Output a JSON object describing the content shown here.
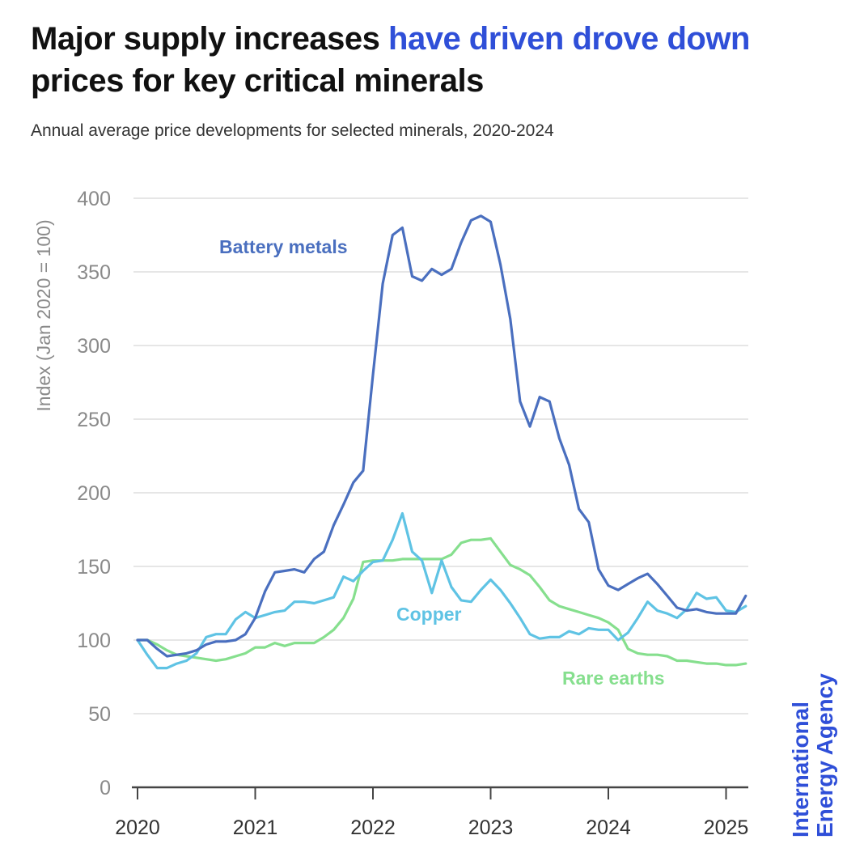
{
  "header": {
    "title_part1": "Major supply increases ",
    "title_highlight": "have driven drove down",
    "title_part2": " prices for key critical minerals",
    "subtitle": "Annual average price developments for selected minerals, 2020-2024"
  },
  "source": {
    "line1": "International",
    "line2": "Energy Agency"
  },
  "colors": {
    "highlight": "#2f4fd8",
    "battery_metals": "#4a6fbf",
    "copper": "#5fc3e4",
    "rare_earths": "#86df8e",
    "grid": "#e6e6e6",
    "axis": "#444444"
  },
  "chart_data": {
    "type": "line",
    "title": "Major supply increases have driven drove down prices for key critical minerals",
    "subtitle": "Annual average price developments for selected minerals, 2020-2024",
    "xlabel": "",
    "ylabel": "Index (Jan 2020 = 100)",
    "x_start": "2020-01",
    "x_frequency": "monthly",
    "x_ticks": [
      "2020",
      "2021",
      "2022",
      "2023",
      "2024",
      "2025"
    ],
    "xlim": [
      2020.0,
      2025.2
    ],
    "ylim": [
      0,
      400
    ],
    "y_ticks": [
      0,
      50,
      100,
      150,
      200,
      250,
      300,
      350,
      400
    ],
    "grid": true,
    "legend": "inline labels",
    "series": [
      {
        "name": "Battery metals",
        "color": "#4a6fbf",
        "values": [
          100,
          100,
          94,
          89,
          90,
          91,
          93,
          97,
          99,
          99,
          100,
          104,
          115,
          133,
          146,
          147,
          148,
          146,
          155,
          160,
          178,
          192,
          207,
          215,
          280,
          342,
          375,
          380,
          347,
          344,
          352,
          348,
          352,
          370,
          385,
          388,
          384,
          355,
          318,
          262,
          245,
          265,
          262,
          237,
          219,
          189,
          180,
          148,
          137,
          134,
          138,
          142,
          145,
          138,
          130,
          122,
          120,
          121,
          119,
          118,
          118,
          118,
          130
        ]
      },
      {
        "name": "Copper",
        "color": "#5fc3e4",
        "values": [
          100,
          90,
          81,
          81,
          84,
          86,
          91,
          102,
          104,
          104,
          114,
          119,
          115,
          117,
          119,
          120,
          126,
          126,
          125,
          127,
          129,
          143,
          140,
          147,
          153,
          154,
          168,
          186,
          160,
          154,
          132,
          154,
          136,
          127,
          126,
          134,
          141,
          134,
          125,
          115,
          104,
          101,
          102,
          102,
          106,
          104,
          108,
          107,
          107,
          100,
          105,
          115,
          126,
          120,
          118,
          115,
          121,
          132,
          128,
          129,
          120,
          119,
          123
        ]
      },
      {
        "name": "Rare earths",
        "color": "#86df8e",
        "values": [
          100,
          100,
          97,
          93,
          90,
          89,
          88,
          87,
          86,
          87,
          89,
          91,
          95,
          95,
          98,
          96,
          98,
          98,
          98,
          102,
          107,
          115,
          128,
          153,
          154,
          154,
          154,
          155,
          155,
          155,
          155,
          155,
          158,
          166,
          168,
          168,
          169,
          160,
          151,
          148,
          144,
          136,
          127,
          123,
          121,
          119,
          117,
          115,
          112,
          107,
          94,
          91,
          90,
          90,
          89,
          86,
          86,
          85,
          84,
          84,
          83,
          83,
          84
        ]
      }
    ],
    "annotations": [
      {
        "text": "Battery metals",
        "series": "Battery metals"
      },
      {
        "text": "Copper",
        "series": "Copper"
      },
      {
        "text": "Rare earths",
        "series": "Rare earths"
      }
    ]
  }
}
